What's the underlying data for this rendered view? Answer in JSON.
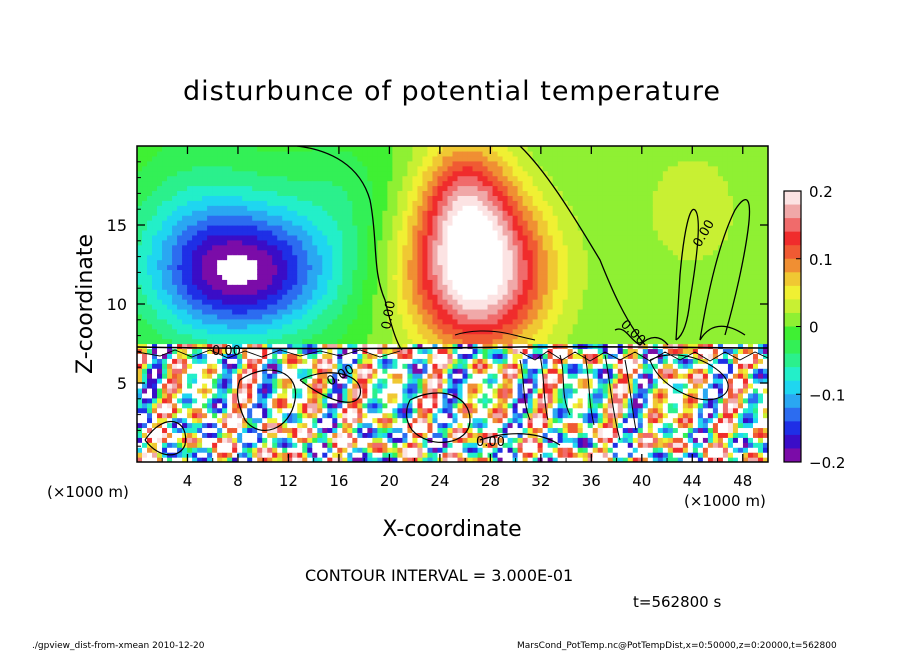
{
  "title": "disturbunce of potential temperature",
  "contour_interval_text": "CONTOUR INTERVAL = 3.000E-01",
  "time_text": "t=562800 s",
  "footer_left": "./gpview_dist-from-xmean   2010-12-20",
  "footer_right": "MarsCond_PotTemp.nc@PotTempDist,x=0:50000,z=0:20000,t=562800",
  "contour_labels": [
    "0.00",
    "0.00",
    "0.00",
    "0.00",
    "0.00",
    "0.00"
  ],
  "chart_data": {
    "type": "heatmap",
    "title": "disturbunce of potential temperature",
    "xlabel": "X-coordinate",
    "ylabel": "Z-coordinate",
    "x_unit_label": "(×1000 m)",
    "y_unit_label": "(×1000 m)",
    "xlim": [
      0,
      50
    ],
    "ylim": [
      0,
      20
    ],
    "xticks": [
      4,
      8,
      12,
      16,
      20,
      24,
      28,
      32,
      36,
      40,
      44,
      48
    ],
    "yticks": [
      5,
      10,
      15
    ],
    "colorbar": {
      "range": [
        -0.2,
        0.2
      ],
      "ticks": [
        0.2,
        0.1,
        0,
        -0.1,
        -0.2
      ],
      "tick_labels": [
        "0.2",
        "0.1",
        "0",
        "−0.1",
        "−0.2"
      ],
      "colors": [
        "#7b0ca8",
        "#3a0dc7",
        "#1f2fe6",
        "#2c6cf0",
        "#2aa7f2",
        "#1fd6f0",
        "#23efc9",
        "#2bf08c",
        "#33f056",
        "#3ff033",
        "#8ff033",
        "#c8f033",
        "#f0f033",
        "#f0c833",
        "#f08f33",
        "#f05a33",
        "#f02c2c",
        "#f06b6b",
        "#f0a8a8",
        "#fce3e3"
      ]
    },
    "contour_interval": 0.3,
    "time": 562800,
    "anomalies": [
      {
        "x": 9,
        "z": 12,
        "value": -0.17,
        "sx": 7,
        "sz": 4
      },
      {
        "x": 5,
        "z": 14,
        "value": -0.06,
        "sx": 6,
        "sz": 6
      },
      {
        "x": 27,
        "z": 12,
        "value": 0.22,
        "sx": 5.5,
        "sz": 5
      },
      {
        "x": 26,
        "z": 17,
        "value": 0.1,
        "sx": 3.5,
        "sz": 4
      },
      {
        "x": 44,
        "z": 16,
        "value": 0.03,
        "sx": 5,
        "sz": 5
      },
      {
        "x": 16,
        "z": 17,
        "value": -0.03,
        "sx": 5,
        "sz": 4
      }
    ]
  }
}
